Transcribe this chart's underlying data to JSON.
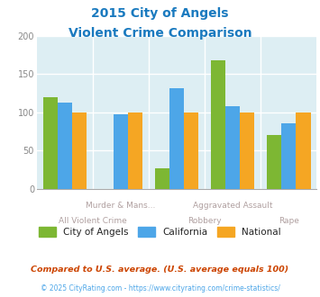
{
  "title_line1": "2015 City of Angels",
  "title_line2": "Violent Crime Comparison",
  "title_color": "#1a7abf",
  "categories": [
    "All Violent Crime",
    "Murder & Mans...",
    "Robbery",
    "Aggravated Assault",
    "Rape"
  ],
  "city_values": [
    119,
    0,
    27,
    168,
    70
  ],
  "california_values": [
    112,
    97,
    131,
    108,
    85
  ],
  "national_values": [
    100,
    100,
    100,
    100,
    100
  ],
  "city_color": "#7db733",
  "california_color": "#4da6e8",
  "national_color": "#f5a623",
  "ylim": [
    0,
    200
  ],
  "yticks": [
    0,
    50,
    100,
    150,
    200
  ],
  "plot_bg": "#ddeef3",
  "legend_labels": [
    "City of Angels",
    "California",
    "National"
  ],
  "footnote1": "Compared to U.S. average. (U.S. average equals 100)",
  "footnote2": "© 2025 CityRating.com - https://www.cityrating.com/crime-statistics/",
  "footnote1_color": "#cc4400",
  "footnote2_color": "#4da6e8",
  "upper_labels": [
    "Murder & Mans...",
    "Aggravated Assault"
  ],
  "lower_labels": [
    "All Violent Crime",
    "Robbery",
    "Rape"
  ],
  "label_color": "#b0a0a0",
  "grid_color": "#ffffff"
}
